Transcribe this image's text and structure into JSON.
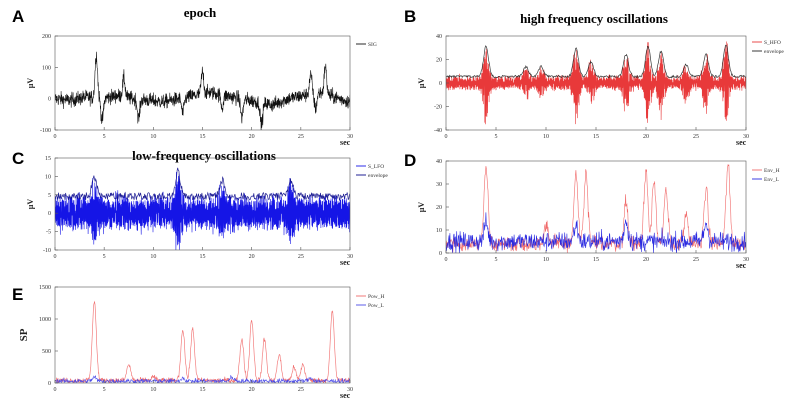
{
  "chart_data": [
    {
      "panel": "A",
      "type": "line",
      "title": "epoch",
      "ylabel": "µV",
      "xunit": "sec",
      "xlim": [
        0,
        30
      ],
      "ylim": [
        -100,
        200
      ],
      "xticks": [
        0,
        5,
        10,
        15,
        20,
        25,
        30
      ],
      "yticks": [
        -100,
        0,
        100,
        200
      ],
      "series": [
        {
          "name": "SIG",
          "color": "#111111",
          "base": [
            0,
            -5,
            5,
            0,
            10,
            0,
            -5,
            -10,
            0,
            10,
            20,
            10,
            0,
            -10,
            -20,
            0,
            10,
            20,
            5,
            -10
          ],
          "noise": 22,
          "events": [
            [
              4.2,
              140
            ],
            [
              4.8,
              -70
            ],
            [
              7,
              60
            ],
            [
              8.5,
              -60
            ],
            [
              13,
              -50
            ],
            [
              15,
              70
            ],
            [
              17,
              -40
            ],
            [
              19,
              -60
            ],
            [
              21,
              -70
            ],
            [
              26,
              60
            ],
            [
              26.5,
              -50
            ],
            [
              27.5,
              90
            ]
          ]
        }
      ]
    },
    {
      "panel": "B",
      "type": "line",
      "title": "high frequency oscillations",
      "ylabel": "µV",
      "xunit": "sec",
      "xlim": [
        0,
        30
      ],
      "ylim": [
        -40,
        40
      ],
      "xticks": [
        0,
        5,
        10,
        15,
        20,
        25,
        30
      ],
      "yticks": [
        -40,
        -20,
        0,
        20,
        40
      ],
      "series": [
        {
          "name": "S_HFO",
          "color": "#e8393a",
          "style": "oscillation",
          "amp": 5,
          "events": [
            [
              4,
              30
            ],
            [
              13,
              28
            ],
            [
              14.5,
              15
            ],
            [
              18,
              22
            ],
            [
              20.2,
              30
            ],
            [
              21.5,
              25
            ],
            [
              26,
              22
            ],
            [
              28,
              32
            ],
            [
              8,
              10
            ],
            [
              9.5,
              10
            ],
            [
              24,
              12
            ]
          ]
        },
        {
          "name": "envelope",
          "color": "#222222",
          "style": "envelope",
          "amp": 5,
          "events": [
            [
              4,
              30
            ],
            [
              13,
              28
            ],
            [
              14.5,
              15
            ],
            [
              18,
              22
            ],
            [
              20.2,
              30
            ],
            [
              21.5,
              25
            ],
            [
              26,
              22
            ],
            [
              28,
              32
            ],
            [
              8,
              10
            ],
            [
              9.5,
              10
            ],
            [
              24,
              12
            ]
          ]
        }
      ]
    },
    {
      "panel": "C",
      "type": "line",
      "title": "low-frequency oscillations",
      "ylabel": "µV",
      "xunit": "sec",
      "xlim": [
        0,
        30
      ],
      "ylim": [
        -10,
        15
      ],
      "xticks": [
        0,
        5,
        10,
        15,
        20,
        25,
        30
      ],
      "yticks": [
        -10,
        -5,
        0,
        5,
        10,
        15
      ],
      "series": [
        {
          "name": "S_LFO",
          "color": "#1515e6",
          "style": "oscillation",
          "amp": 4,
          "events": [
            [
              4,
              6
            ],
            [
              12.5,
              8
            ],
            [
              17,
              5
            ],
            [
              24,
              5
            ]
          ]
        },
        {
          "name": "envelope",
          "color": "#0a0a8a",
          "style": "envelope",
          "amp": 4,
          "events": [
            [
              4,
              6
            ],
            [
              12.5,
              8
            ],
            [
              17,
              5
            ],
            [
              24,
              5
            ]
          ]
        }
      ]
    },
    {
      "panel": "D",
      "type": "line",
      "title": "",
      "ylabel": "µV",
      "xunit": "sec",
      "xlim": [
        0,
        30
      ],
      "ylim": [
        0,
        40
      ],
      "xticks": [
        0,
        5,
        10,
        15,
        20,
        25,
        30
      ],
      "yticks": [
        0,
        10,
        20,
        30,
        40
      ],
      "series": [
        {
          "name": "Env_H",
          "color": "#f06a6a",
          "style": "peaks",
          "base": 4,
          "noise": 3,
          "events": [
            [
              4,
              33
            ],
            [
              13,
              30
            ],
            [
              14,
              30
            ],
            [
              18,
              18
            ],
            [
              20,
              32
            ],
            [
              20.8,
              28
            ],
            [
              22,
              22
            ],
            [
              26,
              24
            ],
            [
              28.2,
              34
            ],
            [
              10,
              9
            ],
            [
              24,
              12
            ]
          ]
        },
        {
          "name": "Env_L",
          "color": "#2a2ae0",
          "style": "peaks",
          "base": 5,
          "noise": 4,
          "events": [
            [
              4,
              8
            ],
            [
              13,
              7
            ],
            [
              18,
              9
            ],
            [
              26,
              8
            ]
          ]
        }
      ]
    },
    {
      "panel": "E",
      "type": "line",
      "title": "",
      "ylabel": "SP",
      "xunit": "sec",
      "xlim": [
        0,
        30
      ],
      "ylim": [
        0,
        1500
      ],
      "xticks": [
        0,
        5,
        10,
        15,
        20,
        25,
        30
      ],
      "yticks": [
        0,
        500,
        1000,
        1500
      ],
      "series": [
        {
          "name": "Pow_H",
          "color": "#f06a6a",
          "style": "peaks",
          "base": 40,
          "noise": 40,
          "events": [
            [
              4,
              1250
            ],
            [
              7.5,
              250
            ],
            [
              13,
              800
            ],
            [
              14,
              800
            ],
            [
              19,
              650
            ],
            [
              20,
              950
            ],
            [
              21.3,
              650
            ],
            [
              22.8,
              400
            ],
            [
              24.3,
              200
            ],
            [
              25.2,
              250
            ],
            [
              28.2,
              1080
            ],
            [
              10,
              60
            ]
          ]
        },
        {
          "name": "Pow_L",
          "color": "#4a4ae8",
          "style": "peaks",
          "base": 30,
          "noise": 35,
          "events": [
            [
              4,
              60
            ],
            [
              13,
              50
            ],
            [
              18,
              60
            ],
            [
              26,
              50
            ]
          ]
        }
      ]
    }
  ]
}
